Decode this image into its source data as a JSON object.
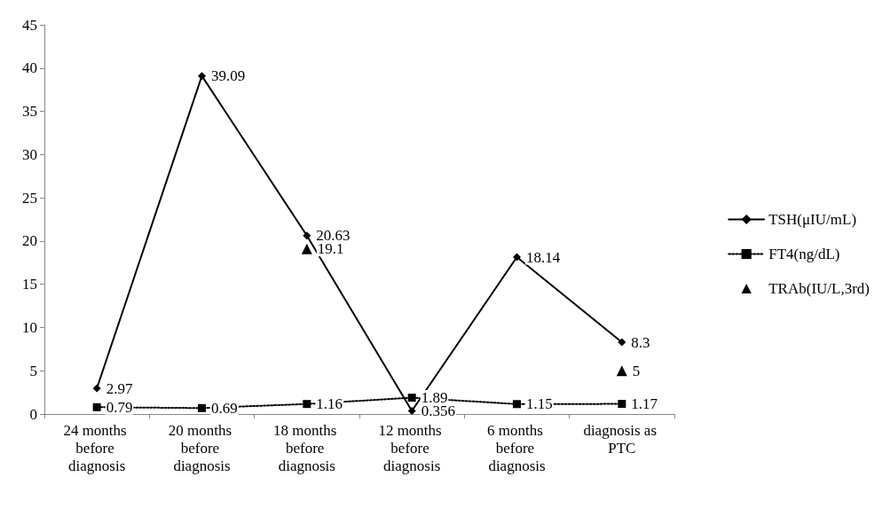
{
  "chart_data": {
    "type": "line",
    "categories": [
      "24 months before diagnosis",
      "20 months before diagnosis",
      "18 months before diagnosis",
      "12 months before diagnosis",
      "6 months before diagnosis",
      "diagnosis as PTC"
    ],
    "series": [
      {
        "name": "TSH(μIU/mL)",
        "color": "#000000",
        "marker": "diamond",
        "line_style": "solid",
        "values": [
          2.97,
          39.09,
          20.63,
          0.356,
          18.14,
          8.3
        ]
      },
      {
        "name": "FT4(ng/dL)",
        "color": "#000000",
        "marker": "square",
        "line_style": "dotted",
        "values": [
          0.79,
          0.69,
          1.16,
          1.89,
          1.15,
          1.17
        ]
      },
      {
        "name": "TRAb(IU/L,3rd)",
        "type": "scatter",
        "color": "#000000",
        "marker": "triangle",
        "values": [
          null,
          null,
          19.1,
          null,
          null,
          5
        ]
      }
    ],
    "ylim": [
      0,
      45
    ],
    "yticks": [
      0,
      5,
      10,
      15,
      20,
      25,
      30,
      35,
      40,
      45
    ],
    "grid": false,
    "legend": "right",
    "data_labels": true
  }
}
